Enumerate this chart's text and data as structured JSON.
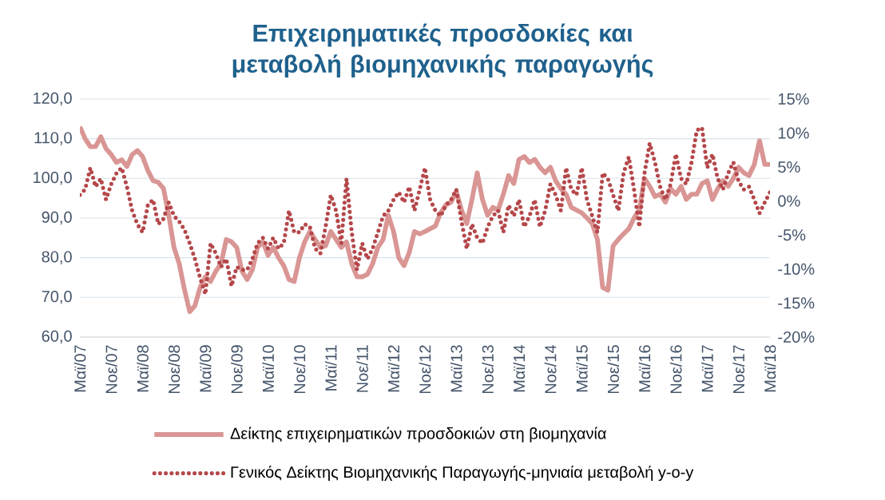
{
  "chart_data": {
    "type": "line",
    "title": "Επιχειρηματικές προσδοκίες και μεταβολή βιομηχανικής παραγωγής",
    "categories": [
      "Μαϊ/07",
      null,
      null,
      null,
      null,
      null,
      "Νοε/07",
      null,
      null,
      null,
      null,
      null,
      "Μαϊ/08",
      null,
      null,
      null,
      null,
      null,
      "Νοε/08",
      null,
      null,
      null,
      null,
      null,
      "Μαϊ/09",
      null,
      null,
      null,
      null,
      null,
      "Νοε/09",
      null,
      null,
      null,
      null,
      null,
      "Μαϊ/10",
      null,
      null,
      null,
      null,
      null,
      "Νοε/10",
      null,
      null,
      null,
      null,
      null,
      "Μαϊ/11",
      null,
      null,
      null,
      null,
      null,
      "Νοε/11",
      null,
      null,
      null,
      null,
      null,
      "Μαϊ/12",
      null,
      null,
      null,
      null,
      null,
      "Νοε/12",
      null,
      null,
      null,
      null,
      null,
      "Μαϊ/13",
      null,
      null,
      null,
      null,
      null,
      "Νοε/13",
      null,
      null,
      null,
      null,
      null,
      "Μαϊ/14",
      null,
      null,
      null,
      null,
      null,
      "Νοε/14",
      null,
      null,
      null,
      null,
      null,
      "Μαϊ/15",
      null,
      null,
      null,
      null,
      null,
      "Νοε/15",
      null,
      null,
      null,
      null,
      null,
      "Μαϊ/16",
      null,
      null,
      null,
      null,
      null,
      "Νοε/16",
      null,
      null,
      null,
      null,
      null,
      "Μαϊ/17",
      null,
      null,
      null,
      null,
      null,
      "Νοε/17",
      null,
      null,
      null,
      null,
      null,
      "Μαϊ/18"
    ],
    "series": [
      {
        "name": "Δείκτης επιχειρηματικών προσδοκιών στη βιομηχανία",
        "color": "#d99694",
        "line_style": "solid",
        "values": [
          113,
          110,
          108,
          108,
          110.5,
          107.5,
          106,
          104,
          104.7,
          103,
          106,
          107,
          105.5,
          102,
          99.4,
          99,
          97.4,
          90.7,
          82.6,
          78.5,
          72,
          66.4,
          67.9,
          72.5,
          75.2,
          74,
          76.6,
          78.5,
          84.6,
          84,
          82.6,
          76.6,
          74.5,
          77,
          82.6,
          84,
          80.6,
          82.6,
          80,
          78,
          74.5,
          74,
          80,
          84,
          86.6,
          84.6,
          82.6,
          83,
          86.6,
          84.6,
          82.6,
          84,
          78.5,
          75.2,
          75.2,
          75.8,
          78.5,
          82.6,
          84.6,
          90.7,
          86.6,
          80,
          78,
          81.3,
          86.6,
          86,
          86.6,
          87.3,
          88,
          91.3,
          93.3,
          94,
          96.7,
          92,
          88.6,
          94.7,
          101.4,
          94.7,
          90.7,
          92.7,
          92,
          96,
          100.7,
          98.7,
          104.8,
          105.5,
          104,
          104.8,
          102.8,
          101.4,
          102.8,
          99.4,
          97.4,
          96,
          92.7,
          92,
          91.3,
          90,
          88.6,
          84.6,
          72.5,
          71.8,
          83,
          84.6,
          86,
          87.3,
          90,
          92,
          100,
          98,
          95.4,
          96,
          94,
          97.4,
          96,
          98,
          94.7,
          96,
          96,
          98.7,
          99.4,
          94.7,
          97.4,
          99.4,
          98,
          100,
          102.8,
          101.4,
          100.7,
          103.5,
          109.5,
          103.5,
          103.5
        ]
      },
      {
        "name": "Γενικός Δείκτης Βιομηχανικής Παραγωγής-μηνιαία μεταβολή y-o-y",
        "color": "#b5474a",
        "line_style": "dotted",
        "axis": "y2",
        "values": [
          0.9,
          1.7,
          4.9,
          2.1,
          3.3,
          0.2,
          2.5,
          4.1,
          4.9,
          2.1,
          -1.4,
          -3.4,
          -4.6,
          -0.6,
          0.2,
          -3.4,
          -2.6,
          -0.2,
          -2.2,
          -3.0,
          -4.2,
          -6.2,
          -8.5,
          -11.3,
          -13.7,
          -6.2,
          -7.7,
          -9.7,
          -8.5,
          -12.5,
          -9.7,
          -10.1,
          -10.1,
          -8.5,
          -6.2,
          -5.4,
          -7.0,
          -5.4,
          -7.0,
          -6.2,
          -1.4,
          -4.6,
          -4.6,
          -3.4,
          -3.8,
          -7.0,
          -7.7,
          -3.8,
          0.9,
          -1.4,
          -6.2,
          3.3,
          -4.6,
          -10.1,
          -6.2,
          -8.5,
          -7.0,
          -4.6,
          -2.2,
          -1.4,
          0.2,
          1.3,
          -0.2,
          2.1,
          -1.4,
          1.7,
          4.9,
          0.2,
          -1.4,
          -2.2,
          -0.6,
          0.2,
          1.7,
          -3.0,
          -7.0,
          -3.4,
          -5.4,
          -6.2,
          -3.8,
          -2.2,
          -1.4,
          -4.6,
          -0.6,
          -2.2,
          0.2,
          -3.8,
          -2.2,
          0.2,
          -3.8,
          -1.4,
          2.5,
          0.9,
          -1.4,
          4.9,
          1.7,
          0.9,
          4.9,
          0.2,
          -2.2,
          -4.6,
          4.1,
          3.3,
          0.9,
          -1.4,
          4.1,
          6.5,
          1.7,
          -3.8,
          4.1,
          8.5,
          5.7,
          2.1,
          0.2,
          2.5,
          6.9,
          3.3,
          2.5,
          5.7,
          10.4,
          10.8,
          4.9,
          6.9,
          3.3,
          1.7,
          4.1,
          5.7,
          2.9,
          1.7,
          2.1,
          0.2,
          -1.8,
          -0.2,
          1.3
        ]
      }
    ],
    "ylim": [
      60,
      120
    ],
    "yticks": [
      {
        "value": 60,
        "label": "60,0"
      },
      {
        "value": 70,
        "label": "70,0"
      },
      {
        "value": 80,
        "label": "80,0"
      },
      {
        "value": 90,
        "label": "90,0"
      },
      {
        "value": 100,
        "label": "100,0"
      },
      {
        "value": 110,
        "label": "110,0"
      },
      {
        "value": 120,
        "label": "120,0"
      }
    ],
    "y2lim": [
      -20,
      15
    ],
    "y2ticks": [
      {
        "value": -20,
        "label": "-20%"
      },
      {
        "value": -15,
        "label": "-15%"
      },
      {
        "value": -10,
        "label": "-10%"
      },
      {
        "value": -5,
        "label": "-5%"
      },
      {
        "value": 0,
        "label": "0%"
      },
      {
        "value": 5,
        "label": "5%"
      },
      {
        "value": 10,
        "label": "10%"
      },
      {
        "value": 15,
        "label": "15%"
      }
    ],
    "grid": "y",
    "legend": "bottom",
    "marker": "none"
  }
}
